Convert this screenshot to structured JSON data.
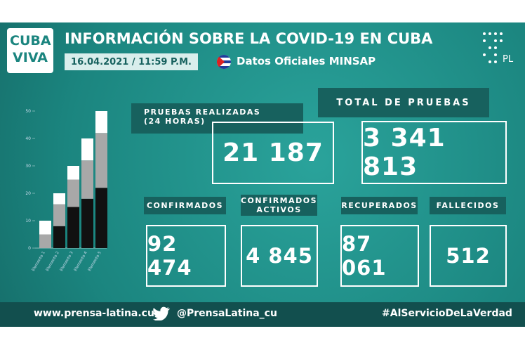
{
  "header": {
    "logo_line1": "CUBA",
    "logo_line2": "VIVA",
    "title": "INFORMACIÓN SOBRE LA COVID-19 EN CUBA",
    "date": "16.04.2021 / 11:59 P.M.",
    "source": "Datos Oficiales MINSAP",
    "agency": "PL"
  },
  "stats": [
    {
      "label": "PRUEBAS REALIZADAS\n(24 HORAS)",
      "value": "21 187"
    },
    {
      "label": "TOTAL DE PRUEBAS",
      "value": "3 341 813"
    },
    {
      "label": "CONFIRMADOS",
      "value": "92 474"
    },
    {
      "label": "CONFIRMADOS\nACTIVOS",
      "value": "4 845"
    },
    {
      "label": "RECUPERADOS",
      "value": "87 061"
    },
    {
      "label": "FALLECIDOS",
      "value": "512"
    }
  ],
  "decor_chart": {
    "type": "stacked-bar",
    "categories": [
      "Elemento 1",
      "Elemento 2",
      "Elemento 3",
      "Elemento 4",
      "Elemento 5"
    ],
    "series": [
      {
        "color": "#111111",
        "values": [
          0,
          8,
          15,
          18,
          22
        ]
      },
      {
        "color": "#a8a8a8",
        "values": [
          5,
          8,
          10,
          14,
          20
        ]
      },
      {
        "color": "#ffffff",
        "values": [
          5,
          4,
          5,
          8,
          8
        ]
      }
    ],
    "ylim": [
      0,
      50
    ],
    "yticks": [
      0,
      10,
      20,
      30,
      40,
      50
    ]
  },
  "footer": {
    "website": "www.prensa-latina.cu",
    "twitter": "@PrensaLatina_cu",
    "hashtag": "#AlServicioDeLaVerdad"
  }
}
